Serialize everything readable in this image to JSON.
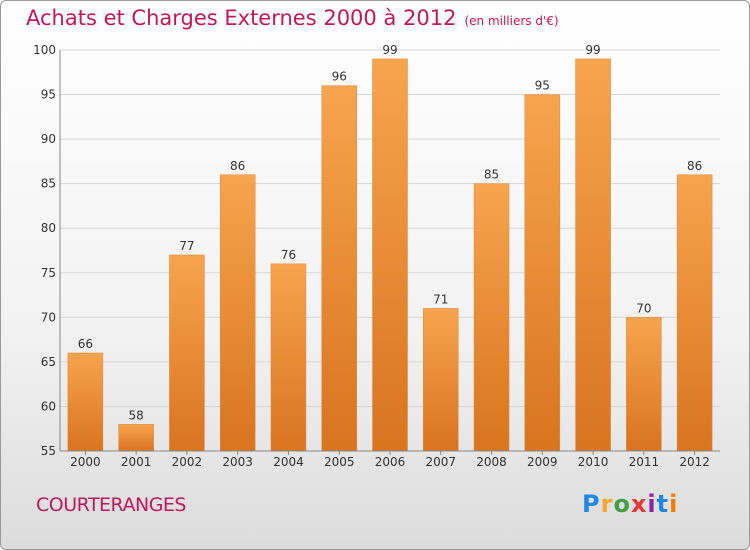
{
  "header": {
    "title": "Achats et Charges Externes 2000 à 2012",
    "subtitle": "(en milliers d'€)"
  },
  "commune": "COURTERANGES",
  "logo": {
    "letters": [
      "P",
      "r",
      "o",
      "x",
      "i",
      "t",
      "i"
    ],
    "colors": [
      "#1e88e5",
      "#f9a825",
      "#43a047",
      "#e53935",
      "#8e24aa",
      "#1e88e5",
      "#f57c00"
    ]
  },
  "chart_data": {
    "type": "bar",
    "categories": [
      "2000",
      "2001",
      "2002",
      "2003",
      "2004",
      "2005",
      "2006",
      "2007",
      "2008",
      "2009",
      "2010",
      "2011",
      "2012"
    ],
    "values": [
      66,
      58,
      77,
      86,
      76,
      96,
      99,
      71,
      85,
      95,
      99,
      70,
      86
    ],
    "ylim": [
      55,
      100
    ],
    "yticks": [
      55,
      60,
      65,
      70,
      75,
      80,
      85,
      90,
      95,
      100
    ],
    "grid": true,
    "bar_color": "#f0923a"
  }
}
